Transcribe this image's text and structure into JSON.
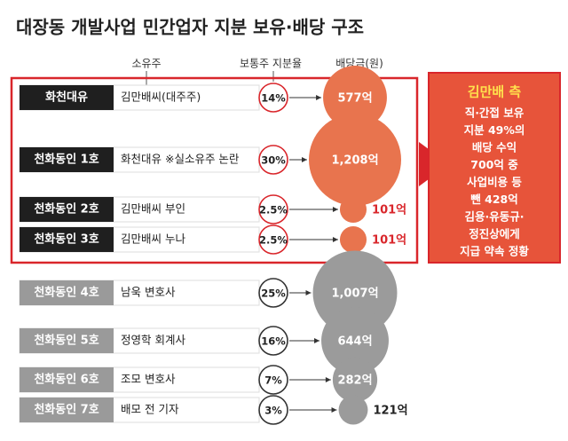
{
  "title": "대장동 개발사업 민간업자 지분 보유·배당 구조",
  "headers": {
    "owner": "소유주",
    "share": "보통주 지분율",
    "dividend": "배당금(원)"
  },
  "rows": [
    {
      "name": "화천대유",
      "owner": "김만배씨(대주주)",
      "share": "14%",
      "dividend": 577,
      "dividend_label": "577억",
      "group": "kim"
    },
    {
      "name": "천화동인 1호",
      "owner": "화천대유 ※실소유주 논란",
      "share": "30%",
      "dividend": 1208,
      "dividend_label": "1,208억",
      "group": "kim"
    },
    {
      "name": "천화동인 2호",
      "owner": "김만배씨 부인",
      "share": "2.5%",
      "dividend": 101,
      "dividend_label": "101억",
      "group": "kim"
    },
    {
      "name": "천화동인 3호",
      "owner": "김만배씨 누나",
      "share": "2.5%",
      "dividend": 101,
      "dividend_label": "101억",
      "group": "kim"
    },
    {
      "name": "천화동인 4호",
      "owner": "남욱 변호사",
      "share": "25%",
      "dividend": 1007,
      "dividend_label": "1,007억",
      "group": "other"
    },
    {
      "name": "천화동인 5호",
      "owner": "정영학 회계사",
      "share": "16%",
      "dividend": 644,
      "dividend_label": "644억",
      "group": "other"
    },
    {
      "name": "천화동인 6호",
      "owner": "조모 변호사",
      "share": "7%",
      "dividend": 282,
      "dividend_label": "282억",
      "group": "other"
    },
    {
      "name": "천화동인 7호",
      "owner": "배모 전 기자",
      "share": "3%",
      "dividend": 121,
      "dividend_label": "121억",
      "group": "other"
    }
  ],
  "side_box": {
    "title": "김만배 측",
    "lines": [
      "직·간접 보유",
      "지분 49%의",
      "배당 수익",
      "700억 중",
      "사업비용 등",
      "뺀 428억",
      "김용·유동규·",
      "정진상에게",
      "지급 약속 정황"
    ]
  }
}
